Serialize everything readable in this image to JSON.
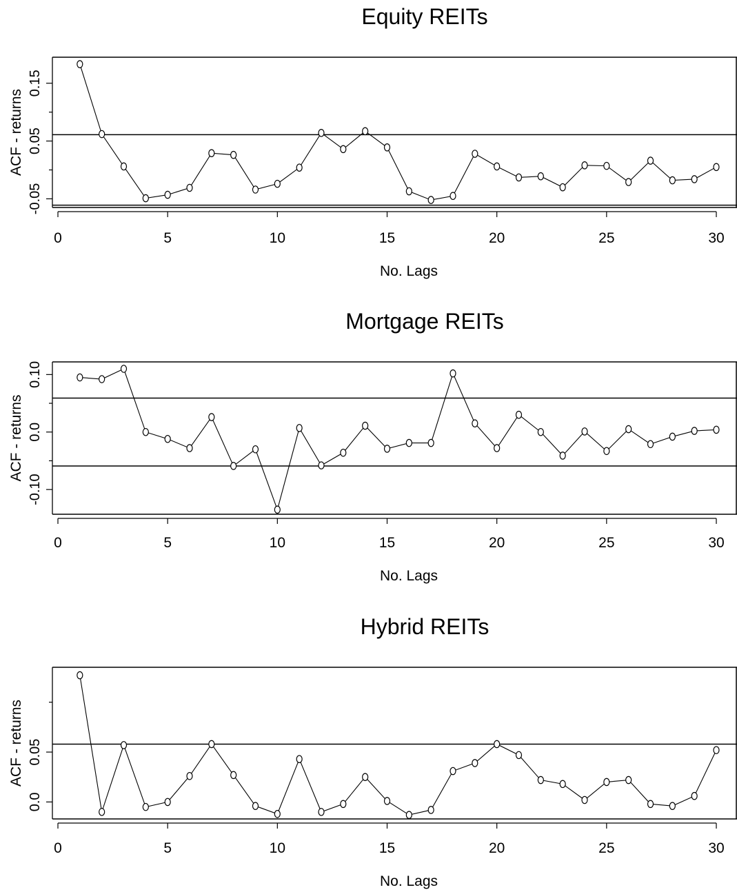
{
  "chart_data": [
    {
      "type": "line",
      "title": "Equity REITs",
      "xlabel": "No. Lags",
      "ylabel": "ACF - returns",
      "xlim": [
        0,
        31
      ],
      "ylim": [
        -0.065,
        0.195
      ],
      "xticks": [
        0,
        5,
        10,
        15,
        20,
        25,
        30
      ],
      "xtick_labels": [
        "0",
        "5",
        "10",
        "15",
        "20",
        "25",
        "30"
      ],
      "yticks": [
        -0.05,
        0.05,
        0.15
      ],
      "ytick_labels": [
        "-0.05",
        "0.05",
        "0.15"
      ],
      "minor_yticks": [
        0.0,
        0.1
      ],
      "bands": [
        0.061,
        -0.061
      ],
      "grid": false,
      "series": [
        {
          "x": [
            1,
            2,
            3,
            4,
            5,
            6,
            7,
            8,
            9,
            10,
            11,
            12,
            13,
            14,
            15,
            16,
            17,
            18,
            19,
            20,
            21,
            22,
            23,
            24,
            25,
            26,
            27,
            28,
            29,
            30
          ],
          "values": [
            0.183,
            0.062,
            0.006,
            -0.049,
            -0.043,
            -0.031,
            0.029,
            0.026,
            -0.034,
            -0.024,
            0.004,
            0.064,
            0.036,
            0.067,
            0.039,
            -0.037,
            -0.052,
            -0.045,
            0.028,
            0.006,
            -0.013,
            -0.011,
            -0.03,
            0.008,
            0.007,
            -0.021,
            0.016,
            -0.018,
            -0.016,
            0.005
          ]
        }
      ]
    },
    {
      "type": "line",
      "title": "Mortgage REITs",
      "xlabel": "No. Lags",
      "ylabel": "ACF - returns",
      "xlim": [
        0,
        31
      ],
      "ylim": [
        -0.143,
        0.122
      ],
      "xticks": [
        0,
        5,
        10,
        15,
        20,
        25,
        30
      ],
      "xtick_labels": [
        "0",
        "5",
        "10",
        "15",
        "20",
        "25",
        "30"
      ],
      "yticks": [
        -0.1,
        0.0,
        0.1
      ],
      "ytick_labels": [
        "-0.10",
        "0.0",
        "0.10"
      ],
      "minor_yticks": [
        -0.05,
        0.05
      ],
      "bands": [
        0.059,
        -0.059
      ],
      "grid": false,
      "series": [
        {
          "x": [
            1,
            2,
            3,
            4,
            5,
            6,
            7,
            8,
            9,
            10,
            11,
            12,
            13,
            14,
            15,
            16,
            17,
            18,
            19,
            20,
            21,
            22,
            23,
            24,
            25,
            26,
            27,
            28,
            29,
            30
          ],
          "values": [
            0.095,
            0.092,
            0.11,
            0.0,
            -0.012,
            -0.028,
            0.026,
            -0.059,
            -0.03,
            -0.135,
            0.007,
            -0.058,
            -0.036,
            0.011,
            -0.029,
            -0.019,
            -0.019,
            0.102,
            0.015,
            -0.028,
            0.03,
            0.0,
            -0.041,
            0.001,
            -0.033,
            0.005,
            -0.021,
            -0.008,
            0.002,
            0.004
          ]
        }
      ]
    },
    {
      "type": "line",
      "title": "Hybrid REITs",
      "xlabel": "No. Lags",
      "ylabel": "ACF - returns",
      "xlim": [
        0,
        31
      ],
      "ylim": [
        -0.017,
        0.135
      ],
      "xticks": [
        0,
        5,
        10,
        15,
        20,
        25,
        30
      ],
      "xtick_labels": [
        "0",
        "5",
        "10",
        "15",
        "20",
        "25",
        "30"
      ],
      "yticks": [
        0.0,
        0.05
      ],
      "ytick_labels": [
        "0.0",
        "0.05"
      ],
      "minor_yticks": [
        0.1
      ],
      "bands": [
        0.058
      ],
      "grid": false,
      "series": [
        {
          "x": [
            1,
            2,
            3,
            4,
            5,
            6,
            7,
            8,
            9,
            10,
            11,
            12,
            13,
            14,
            15,
            16,
            17,
            18,
            19,
            20,
            21,
            22,
            23,
            24,
            25,
            26,
            27,
            28,
            29,
            30
          ],
          "values": [
            0.127,
            -0.01,
            0.057,
            -0.005,
            0.0,
            0.026,
            0.058,
            0.027,
            -0.004,
            -0.012,
            0.043,
            -0.01,
            -0.002,
            0.025,
            0.001,
            -0.013,
            -0.008,
            0.031,
            0.039,
            0.058,
            0.047,
            0.022,
            0.018,
            0.002,
            0.02,
            0.022,
            -0.002,
            -0.004,
            0.006,
            0.052
          ]
        }
      ]
    }
  ]
}
